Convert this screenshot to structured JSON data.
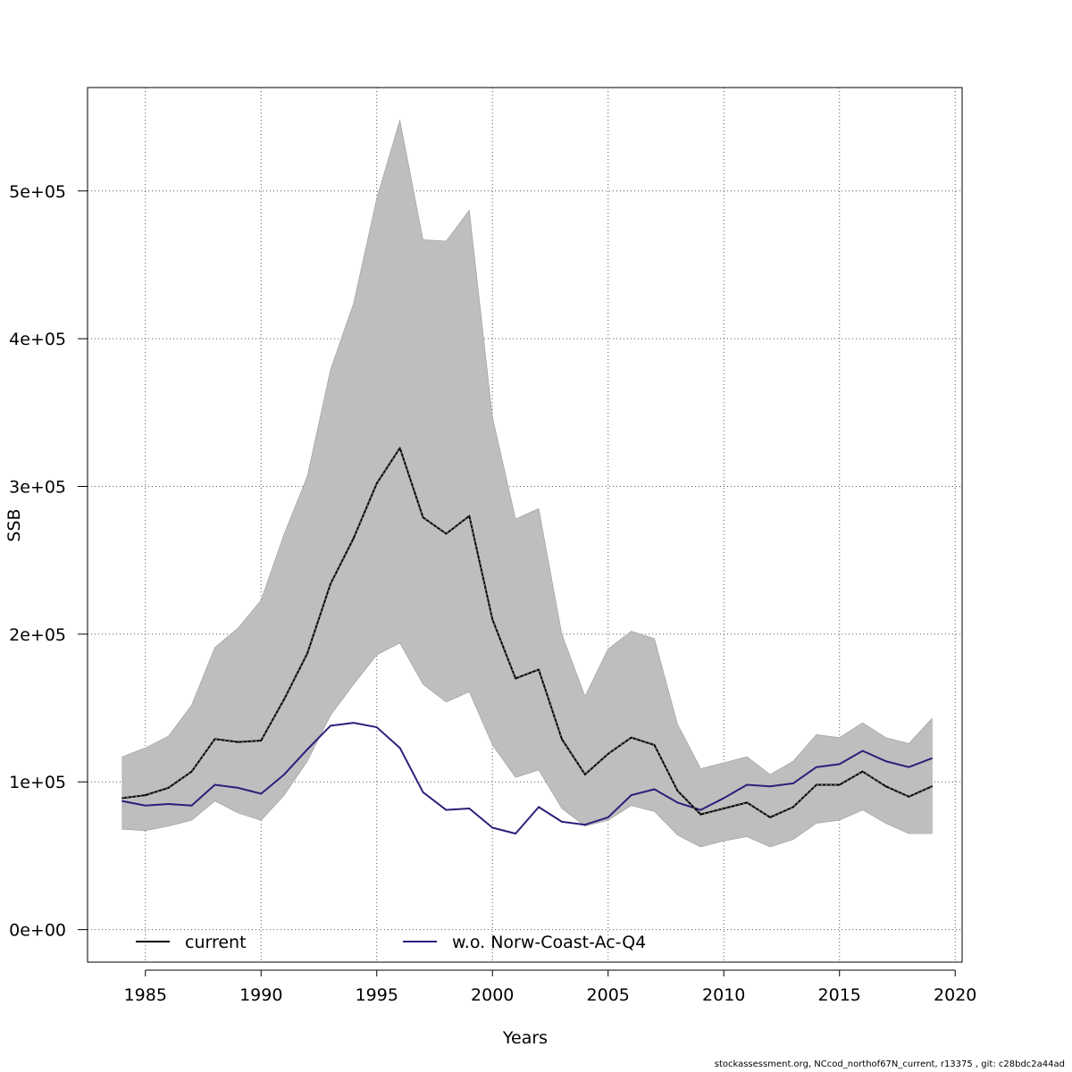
{
  "chart_data": {
    "type": "line",
    "title": "",
    "xlabel": "Years",
    "ylabel": "SSB",
    "xlim": [
      1982.5,
      2020.3
    ],
    "ylim": [
      -22000,
      570000
    ],
    "x_ticks": [
      1985,
      1990,
      1995,
      2000,
      2005,
      2010,
      2015,
      2020
    ],
    "y_ticks": [
      0,
      100000,
      200000,
      300000,
      400000,
      500000
    ],
    "y_tick_labels": [
      "0e+00",
      "1e+05",
      "2e+05",
      "3e+05",
      "4e+05",
      "5e+05"
    ],
    "grid": true,
    "legend_position": "bottom",
    "x": [
      1984,
      1985,
      1986,
      1987,
      1988,
      1989,
      1990,
      1991,
      1992,
      1993,
      1994,
      1995,
      1996,
      1997,
      1998,
      1999,
      2000,
      2001,
      2002,
      2003,
      2004,
      2005,
      2006,
      2007,
      2008,
      2009,
      2010,
      2011,
      2012,
      2013,
      2014,
      2015,
      2016,
      2017,
      2018,
      2019
    ],
    "band": {
      "name": "confidence interval",
      "color": "#bebebe",
      "lower": [
        68000,
        67000,
        70000,
        74000,
        87000,
        79000,
        74000,
        91000,
        114000,
        145000,
        166000,
        186000,
        194000,
        166000,
        154000,
        161000,
        125000,
        103000,
        108000,
        82000,
        70000,
        74000,
        84000,
        80000,
        64000,
        56000,
        60000,
        63000,
        56000,
        61000,
        72000,
        74000,
        81000,
        72000,
        65000,
        65000
      ],
      "upper": [
        117000,
        123000,
        131000,
        152000,
        191000,
        204000,
        223000,
        268000,
        307000,
        379000,
        424000,
        495000,
        548000,
        467000,
        466000,
        487000,
        347000,
        278000,
        285000,
        200000,
        158000,
        190000,
        202000,
        197000,
        139000,
        109000,
        113000,
        117000,
        105000,
        114000,
        132000,
        130000,
        140000,
        130000,
        126000,
        143000
      ]
    },
    "series": [
      {
        "name": "current",
        "color": "#000000",
        "values": [
          89000,
          91000,
          96000,
          107000,
          129000,
          127000,
          128000,
          156000,
          187000,
          234000,
          265000,
          302000,
          326000,
          279000,
          268000,
          280000,
          210000,
          170000,
          176000,
          129000,
          105000,
          119000,
          130000,
          125000,
          94000,
          78000,
          82000,
          86000,
          76000,
          83000,
          98000,
          98000,
          107000,
          97000,
          90000,
          97000
        ]
      },
      {
        "name": "w.o. Norw-Coast-Ac-Q4",
        "color": "#2b1f7a",
        "values": [
          87000,
          84000,
          85000,
          84000,
          98000,
          96000,
          92000,
          105000,
          122000,
          138000,
          140000,
          137000,
          123000,
          93000,
          81000,
          82000,
          69000,
          65000,
          83000,
          73000,
          71000,
          76000,
          91000,
          95000,
          86000,
          81000,
          89000,
          98000,
          97000,
          99000,
          110000,
          112000,
          121000,
          114000,
          110000,
          116000
        ]
      }
    ]
  },
  "footer_text": "stockassessment.org, NCcod_northof67N_current, r13375 , git: c28bdc2a44ad"
}
